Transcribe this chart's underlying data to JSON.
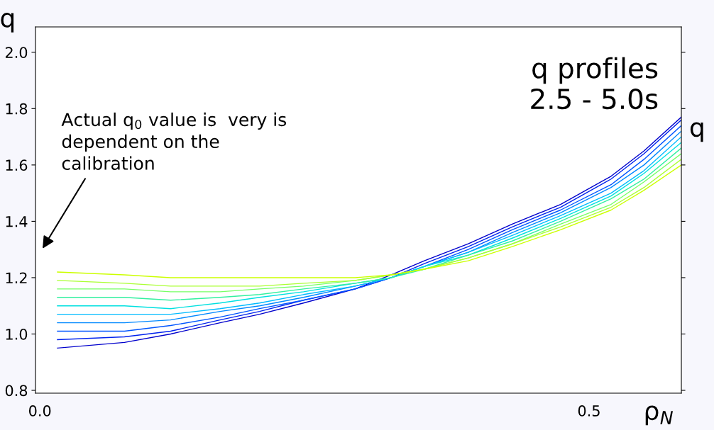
{
  "chart_data": {
    "type": "line",
    "title": "q profiles\n2.5 - 5.0s",
    "xlabel": "ρ$_{N}$",
    "ylabel": "q",
    "y2label": "q",
    "annotations": [
      "Actual q$_{0}$ value is  very is\ndependent on the\ncalibration"
    ],
    "x": [
      0.016,
      0.077,
      0.119,
      0.164,
      0.2,
      0.24,
      0.287,
      0.32,
      0.35,
      0.39,
      0.43,
      0.474,
      0.52,
      0.55,
      0.584
    ],
    "series": [
      {
        "color": "#0000cc",
        "values": [
          0.95,
          0.97,
          1.0,
          1.04,
          1.07,
          1.11,
          1.16,
          1.21,
          1.26,
          1.32,
          1.39,
          1.46,
          1.56,
          1.65,
          1.77
        ]
      },
      {
        "color": "#0022ee",
        "values": [
          0.98,
          0.99,
          1.01,
          1.05,
          1.08,
          1.12,
          1.16,
          1.2,
          1.25,
          1.31,
          1.38,
          1.45,
          1.55,
          1.64,
          1.76
        ]
      },
      {
        "color": "#0055ff",
        "values": [
          1.01,
          1.01,
          1.03,
          1.06,
          1.09,
          1.12,
          1.16,
          1.2,
          1.24,
          1.3,
          1.37,
          1.44,
          1.53,
          1.62,
          1.74
        ]
      },
      {
        "color": "#0088ff",
        "values": [
          1.04,
          1.04,
          1.05,
          1.08,
          1.1,
          1.13,
          1.17,
          1.2,
          1.24,
          1.29,
          1.36,
          1.43,
          1.52,
          1.6,
          1.72
        ]
      },
      {
        "color": "#00bbff",
        "values": [
          1.07,
          1.07,
          1.07,
          1.09,
          1.11,
          1.14,
          1.17,
          1.2,
          1.24,
          1.29,
          1.35,
          1.42,
          1.5,
          1.58,
          1.7
        ]
      },
      {
        "color": "#00e0e0",
        "values": [
          1.1,
          1.1,
          1.09,
          1.11,
          1.13,
          1.15,
          1.18,
          1.2,
          1.24,
          1.28,
          1.34,
          1.41,
          1.49,
          1.57,
          1.68
        ]
      },
      {
        "color": "#33f0a0",
        "values": [
          1.13,
          1.13,
          1.12,
          1.13,
          1.14,
          1.16,
          1.18,
          1.2,
          1.23,
          1.28,
          1.33,
          1.4,
          1.48,
          1.55,
          1.66
        ]
      },
      {
        "color": "#77ff66",
        "values": [
          1.16,
          1.16,
          1.15,
          1.15,
          1.16,
          1.17,
          1.19,
          1.21,
          1.23,
          1.27,
          1.32,
          1.39,
          1.46,
          1.54,
          1.64
        ]
      },
      {
        "color": "#aaff33",
        "values": [
          1.19,
          1.18,
          1.17,
          1.17,
          1.17,
          1.18,
          1.19,
          1.21,
          1.23,
          1.27,
          1.32,
          1.38,
          1.45,
          1.52,
          1.62
        ]
      },
      {
        "color": "#ccff00",
        "values": [
          1.22,
          1.21,
          1.2,
          1.2,
          1.2,
          1.2,
          1.2,
          1.21,
          1.23,
          1.26,
          1.31,
          1.37,
          1.44,
          1.51,
          1.6
        ]
      }
    ],
    "xlim": [
      -0.004,
      0.584
    ],
    "xticks": [
      {
        "value": 0.0,
        "label": "0.0"
      },
      0.5
    ],
    "ylim": [
      0.79,
      2.09
    ],
    "yticks": [
      0.8,
      {
        "value": 1.0,
        "label": "1.0"
      },
      1.2,
      1.4,
      1.6,
      1.8,
      {
        "value": 2.0,
        "label": "2.0"
      }
    ],
    "grid": false,
    "legend": false,
    "marker": "none",
    "line_style": "solid"
  }
}
